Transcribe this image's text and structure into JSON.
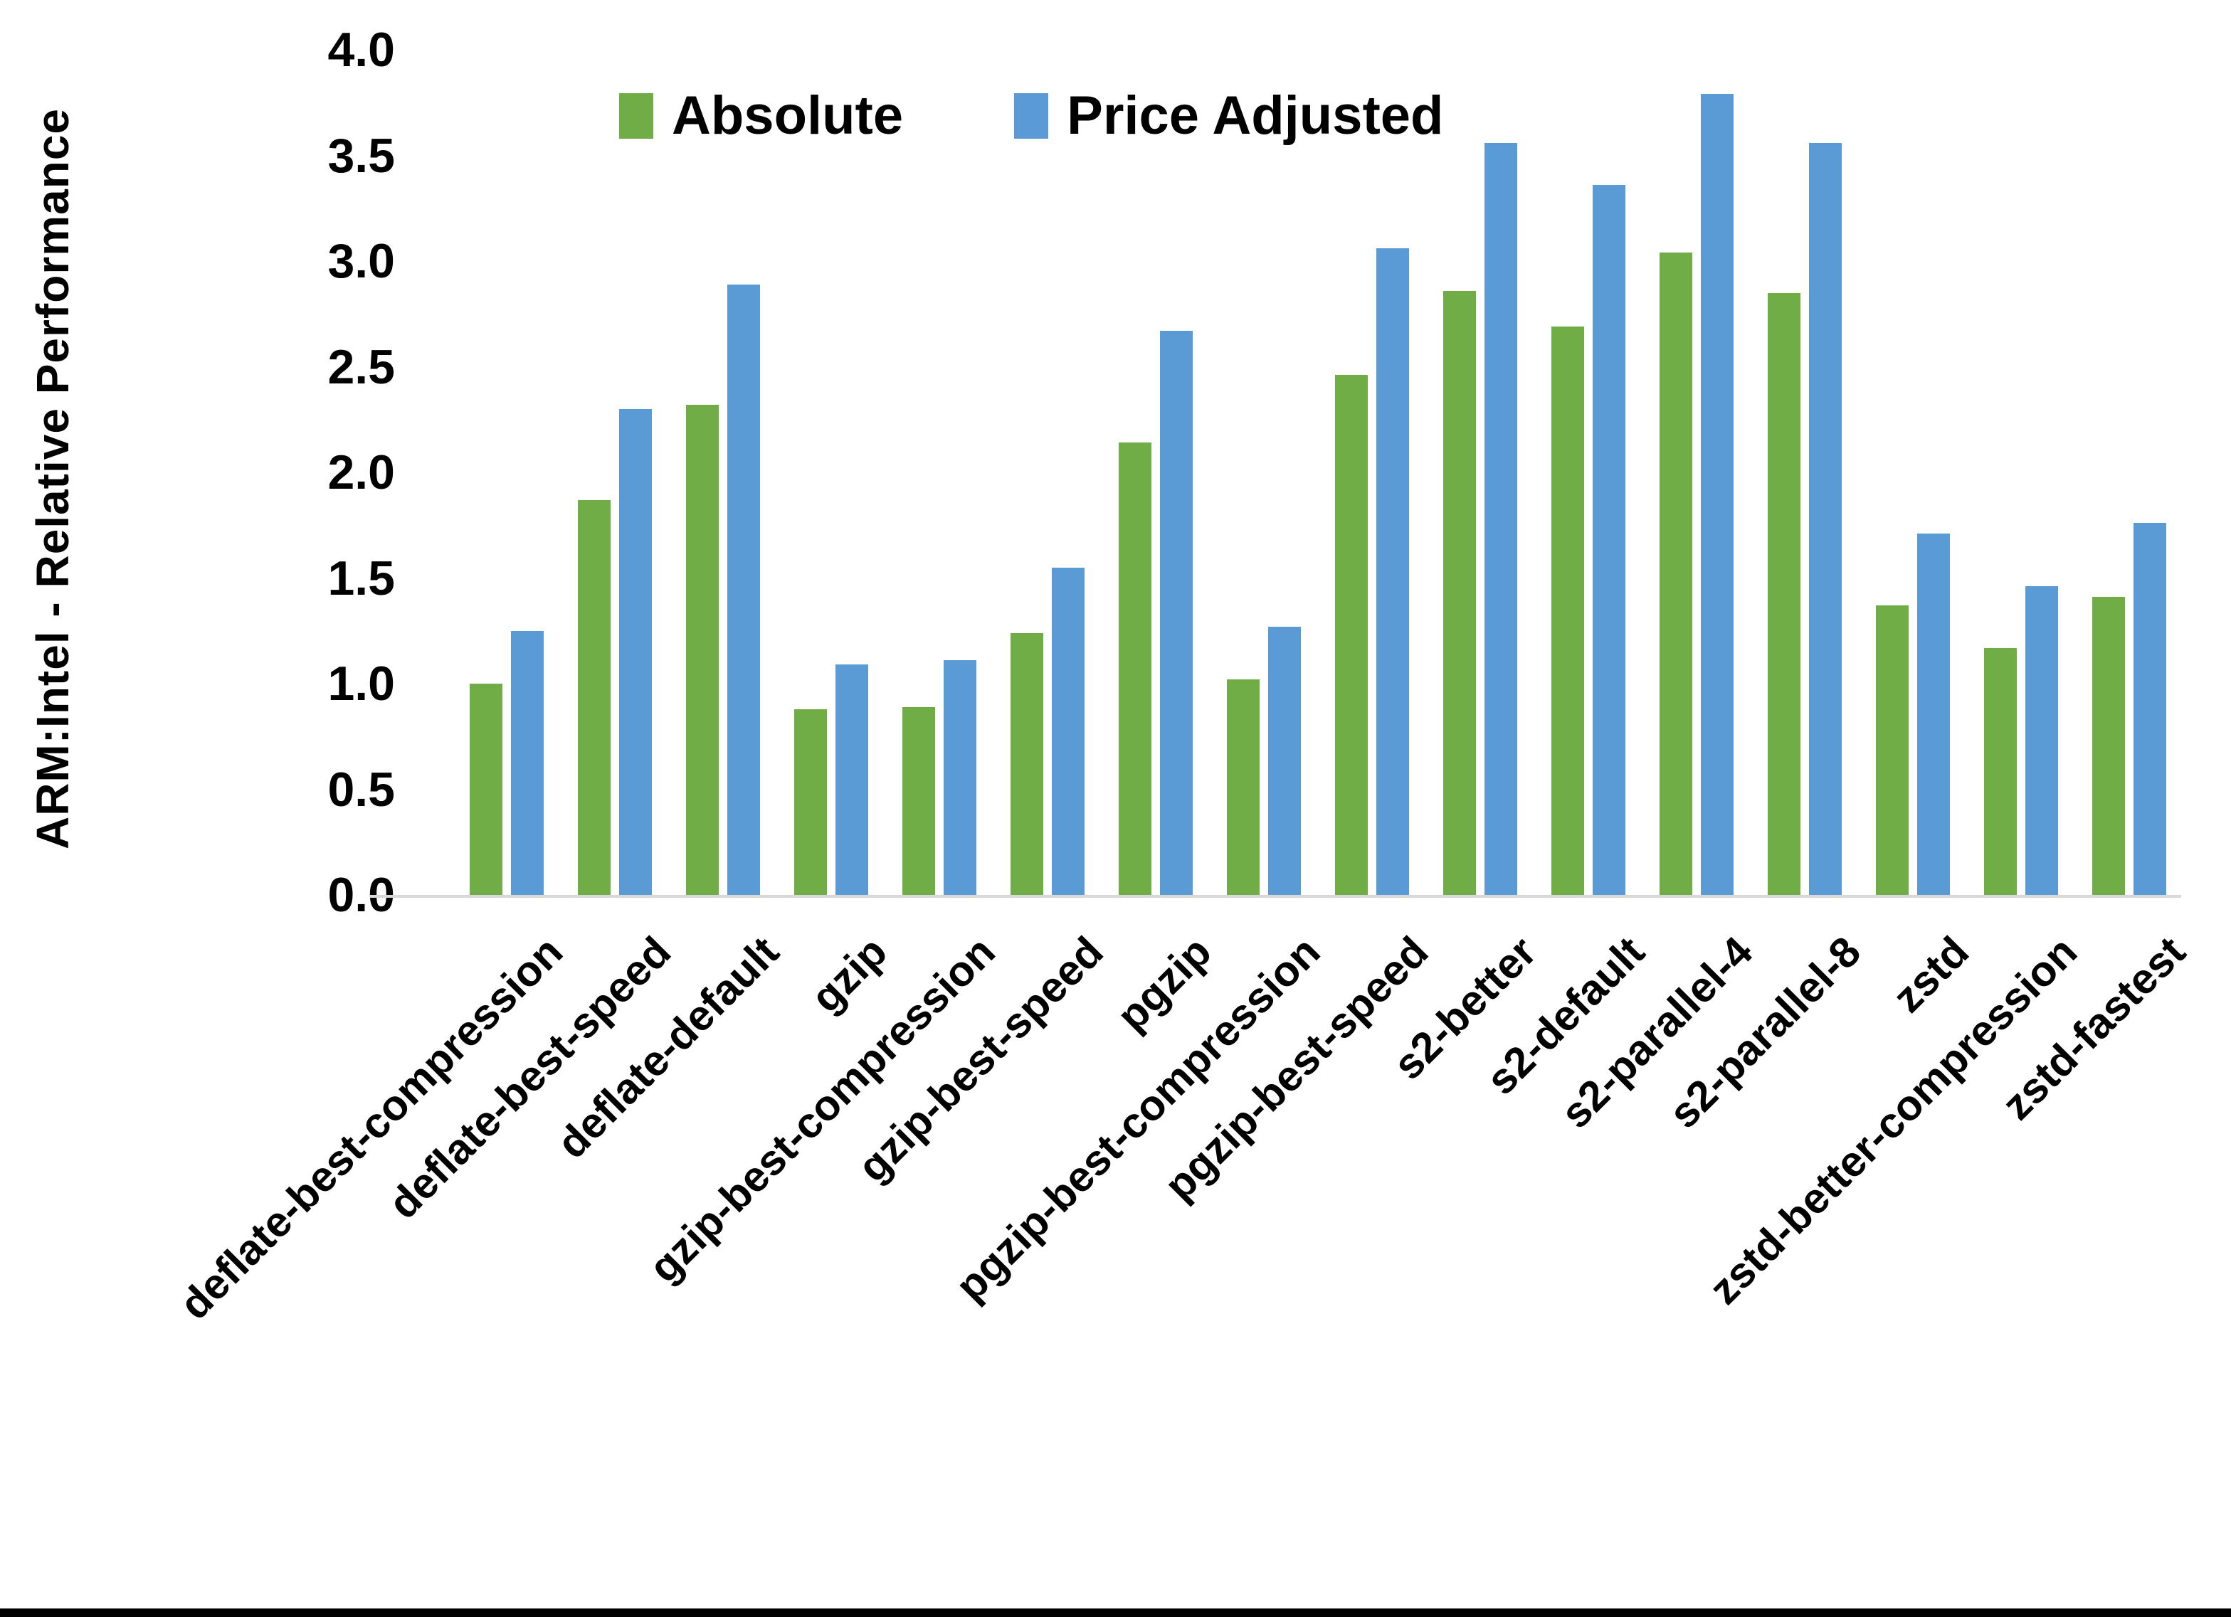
{
  "chart_data": {
    "type": "bar",
    "title": "",
    "xlabel": "",
    "ylabel": "ARM:Intel - Relative Performance",
    "ylim": [
      0.0,
      4.0
    ],
    "ytick_step": 0.5,
    "ytick_labels": [
      "0.0",
      "0.5",
      "1.0",
      "1.5",
      "2.0",
      "2.5",
      "3.0",
      "3.5",
      "4.0"
    ],
    "grid": false,
    "legend_position": "top-center",
    "categories": [
      "deflate-best-compression",
      "deflate-best-speed",
      "deflate-default",
      "gzip",
      "gzip-best-compression",
      "gzip-best-speed",
      "pgzip",
      "pgzip-best-compression",
      "pgzip-best-speed",
      "s2-better",
      "s2-default",
      "s2-parallel-4",
      "s2-parallel-8",
      "zstd",
      "zstd-better-compression",
      "zstd-fastest"
    ],
    "series": [
      {
        "name": "Absolute",
        "color": "#70AD47",
        "values": [
          1.0,
          1.87,
          2.32,
          0.88,
          0.89,
          1.24,
          2.14,
          1.02,
          2.46,
          2.86,
          2.69,
          3.04,
          2.85,
          1.37,
          1.17,
          1.41
        ]
      },
      {
        "name": "Price Adjusted",
        "color": "#5B9BD5",
        "values": [
          1.25,
          2.3,
          2.89,
          1.09,
          1.11,
          1.55,
          2.67,
          1.27,
          3.06,
          3.56,
          3.36,
          3.79,
          3.56,
          1.71,
          1.46,
          1.76
        ]
      }
    ]
  },
  "colors": {
    "background": "#FFFFFF",
    "axis_line": "#D9D9D9",
    "text": "#000000",
    "bottom_edge": "#000000"
  }
}
